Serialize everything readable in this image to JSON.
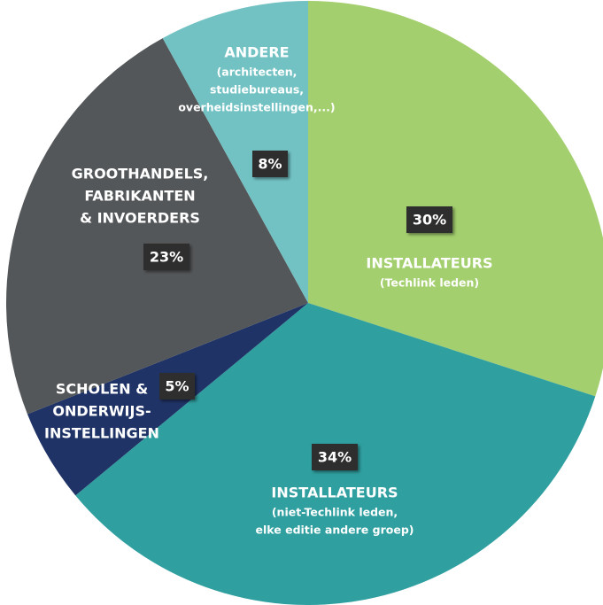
{
  "chart_data": {
    "type": "pie",
    "labels": [
      {
        "title": [
          "INSTALLATEURS"
        ],
        "note": [
          "(Techlink leden)"
        ]
      },
      {
        "title": [
          "INSTALLATEURS"
        ],
        "note": [
          "(niet-Techlink leden,",
          "elke editie andere groep)"
        ]
      },
      {
        "title": [
          "SCHOLEN &",
          "ONDERWIJS-",
          "INSTELLINGEN"
        ],
        "note": []
      },
      {
        "title": [
          "GROOTHANDELS,",
          "FABRIKANTEN",
          "& INVOERDERS"
        ],
        "note": []
      },
      {
        "title": [
          "ANDERE"
        ],
        "note": [
          "(architecten,",
          "studiebureaus,",
          "overheidsinstellingen,...)"
        ]
      }
    ],
    "values": [
      30,
      34,
      5,
      23,
      8
    ],
    "value_labels": [
      "30%",
      "34%",
      "5%",
      "23%",
      "8%"
    ],
    "colors": [
      "#a3cf6e",
      "#2f9fa0",
      "#1f3366",
      "#545759",
      "#72c2c4"
    ]
  }
}
